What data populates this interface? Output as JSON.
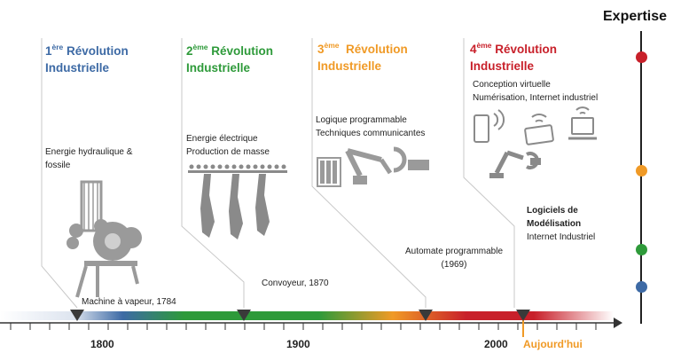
{
  "expertise_title": "Expertise",
  "revolutions": [
    {
      "ordinal_num": "1",
      "ordinal_sup": "ère",
      "title_word": "Révolution",
      "title_line2": "Industrielle",
      "color": "#3d6aa5",
      "description": [
        "Energie hydraulique &",
        "fossile"
      ],
      "milestone": "Machine à vapeur, 1784"
    },
    {
      "ordinal_num": "2",
      "ordinal_sup": "ème",
      "title_word": "Révolution",
      "title_line2": "Industrielle",
      "color": "#2e9a3a",
      "description": [
        "Energie électrique",
        "Production de masse"
      ],
      "milestone": "Convoyeur, 1870"
    },
    {
      "ordinal_num": "3",
      "ordinal_sup": "ème",
      "title_word": "Révolution",
      "title_line2": "Industrielle",
      "color": "#f09a26",
      "description": [
        "Logique programmable",
        "Techniques communicantes"
      ],
      "milestone": [
        "Automate programmable",
        "(1969)"
      ]
    },
    {
      "ordinal_num": "4",
      "ordinal_sup": "ème",
      "title_word": "Révolution",
      "title_line2": "Industrielle",
      "color": "#c8202a",
      "description": [
        "Conception virtuelle",
        "Numérisation, Internet industriel"
      ],
      "milestone": [
        "Logiciels de",
        "Modélisation",
        "Internet Industriel"
      ]
    }
  ],
  "axis": {
    "labels": [
      "1800",
      "1900",
      "2000"
    ],
    "today_label": "Aujourd'hui",
    "today_color": "#f09a26"
  },
  "expertise_dots": [
    {
      "color": "#c8202a"
    },
    {
      "color": "#f09a26"
    },
    {
      "color": "#2e9a3a"
    },
    {
      "color": "#3d6aa5"
    }
  ]
}
